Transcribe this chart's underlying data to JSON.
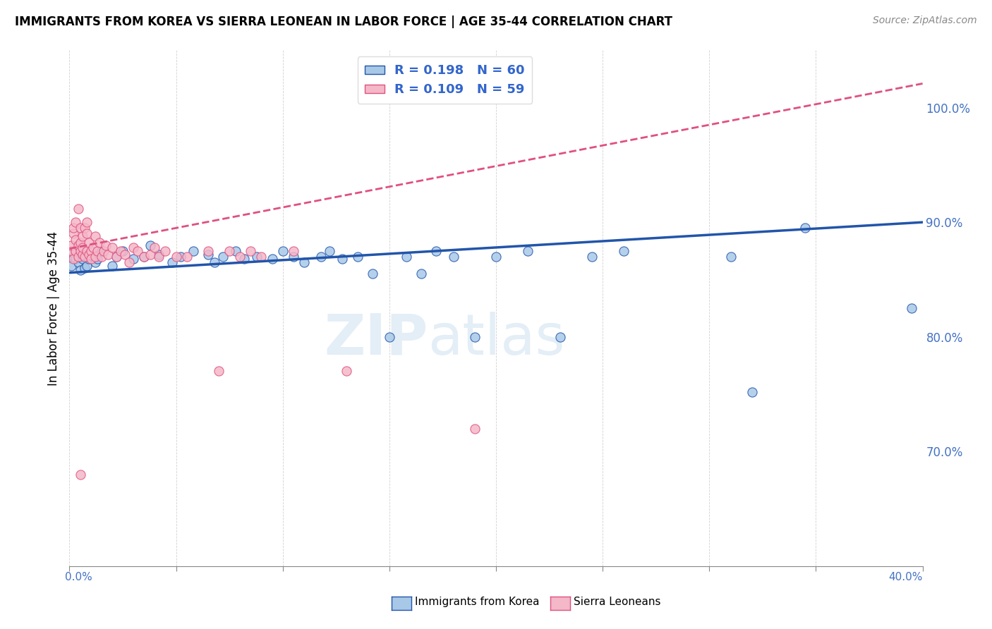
{
  "title": "IMMIGRANTS FROM KOREA VS SIERRA LEONEAN IN LABOR FORCE | AGE 35-44 CORRELATION CHART",
  "source": "Source: ZipAtlas.com",
  "ylabel": "In Labor Force | Age 35-44",
  "legend_label_korea": "Immigrants from Korea",
  "legend_label_sierra": "Sierra Leoneans",
  "R_korea": 0.198,
  "N_korea": 60,
  "R_sierra": 0.109,
  "N_sierra": 59,
  "color_korea": "#a8c8e8",
  "color_sierra": "#f4b8c8",
  "color_korea_line": "#2255aa",
  "color_sierra_line": "#e05080",
  "watermark": "ZIPatlas",
  "xlim": [
    0.0,
    0.4
  ],
  "ylim": [
    0.6,
    1.05
  ],
  "yticks": [
    0.7,
    0.8,
    0.9,
    1.0
  ],
  "korea_x": [
    0.001,
    0.002,
    0.003,
    0.003,
    0.004,
    0.004,
    0.005,
    0.005,
    0.006,
    0.006,
    0.007,
    0.007,
    0.008,
    0.008,
    0.009,
    0.01,
    0.011,
    0.012,
    0.013,
    0.015,
    0.02,
    0.022,
    0.025,
    0.03,
    0.035,
    0.038,
    0.042,
    0.048,
    0.052,
    0.058,
    0.065,
    0.068,
    0.072,
    0.078,
    0.082,
    0.088,
    0.095,
    0.1,
    0.105,
    0.11,
    0.118,
    0.122,
    0.128,
    0.135,
    0.142,
    0.15,
    0.158,
    0.165,
    0.172,
    0.18,
    0.19,
    0.2,
    0.215,
    0.23,
    0.245,
    0.26,
    0.31,
    0.32,
    0.345,
    0.395
  ],
  "korea_y": [
    0.862,
    0.87,
    0.868,
    0.875,
    0.872,
    0.865,
    0.858,
    0.87,
    0.875,
    0.868,
    0.86,
    0.875,
    0.87,
    0.862,
    0.868,
    0.872,
    0.87,
    0.865,
    0.868,
    0.875,
    0.862,
    0.87,
    0.875,
    0.868,
    0.87,
    0.88,
    0.872,
    0.865,
    0.87,
    0.875,
    0.872,
    0.865,
    0.87,
    0.875,
    0.868,
    0.87,
    0.868,
    0.875,
    0.87,
    0.865,
    0.87,
    0.875,
    0.868,
    0.87,
    0.855,
    0.8,
    0.87,
    0.855,
    0.875,
    0.87,
    0.8,
    0.87,
    0.875,
    0.8,
    0.87,
    0.875,
    0.87,
    0.752,
    0.895,
    0.825
  ],
  "sierra_x": [
    0.001,
    0.001,
    0.002,
    0.002,
    0.002,
    0.003,
    0.003,
    0.003,
    0.004,
    0.004,
    0.004,
    0.005,
    0.005,
    0.005,
    0.006,
    0.006,
    0.006,
    0.007,
    0.007,
    0.008,
    0.008,
    0.008,
    0.009,
    0.009,
    0.01,
    0.01,
    0.011,
    0.012,
    0.012,
    0.013,
    0.014,
    0.015,
    0.016,
    0.017,
    0.018,
    0.02,
    0.022,
    0.024,
    0.026,
    0.028,
    0.03,
    0.032,
    0.035,
    0.038,
    0.04,
    0.042,
    0.045,
    0.05,
    0.055,
    0.065,
    0.07,
    0.075,
    0.08,
    0.085,
    0.09,
    0.105,
    0.13,
    0.19,
    0.005
  ],
  "sierra_y": [
    0.875,
    0.88,
    0.89,
    0.868,
    0.895,
    0.875,
    0.885,
    0.9,
    0.87,
    0.88,
    0.912,
    0.875,
    0.882,
    0.895,
    0.872,
    0.878,
    0.888,
    0.87,
    0.895,
    0.875,
    0.89,
    0.9,
    0.872,
    0.882,
    0.875,
    0.868,
    0.878,
    0.87,
    0.888,
    0.875,
    0.882,
    0.87,
    0.875,
    0.88,
    0.872,
    0.878,
    0.87,
    0.875,
    0.872,
    0.865,
    0.878,
    0.875,
    0.87,
    0.872,
    0.878,
    0.87,
    0.875,
    0.87,
    0.87,
    0.875,
    0.77,
    0.875,
    0.87,
    0.875,
    0.87,
    0.875,
    0.77,
    0.72,
    0.68
  ]
}
